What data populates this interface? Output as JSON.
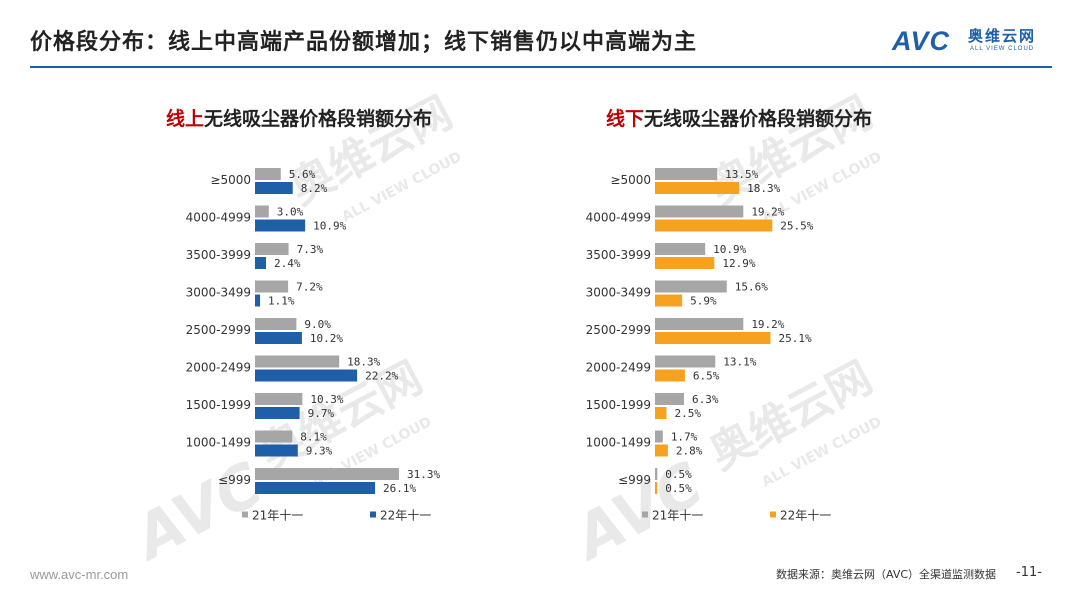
{
  "header": {
    "title": "价格段分布：线上中高端产品份额增加；线下销售仍以中高端为主"
  },
  "logo": {
    "mark": "AVC",
    "cn": "奥维云网",
    "en": "ALL VIEW CLOUD"
  },
  "watermark": {
    "cn": "奥维云网",
    "en": "ALL VIEW CLOUD"
  },
  "colors": {
    "accent": "#1f5fa8",
    "highlight": "#c00000",
    "gray_series": "#a6a6a6",
    "online_series": "#1f5fa8",
    "offline_series": "#f6a21e"
  },
  "chart_data": [
    {
      "type": "bar",
      "orientation": "horizontal",
      "title_highlight": "线上",
      "title_rest": "无线吸尘器价格段销额分布",
      "categories": [
        "≥5000",
        "4000-4999",
        "3500-3999",
        "3000-3499",
        "2500-2999",
        "2000-2499",
        "1500-1999",
        "1000-1499",
        "≤999"
      ],
      "series": [
        {
          "name": "21年十一",
          "color": "#a6a6a6",
          "values": [
            5.6,
            3.0,
            7.3,
            7.2,
            9.0,
            18.3,
            10.3,
            8.1,
            31.3
          ]
        },
        {
          "name": "22年十一",
          "color": "#1f5fa8",
          "values": [
            8.2,
            10.9,
            2.4,
            1.1,
            10.2,
            22.2,
            9.7,
            9.3,
            26.1
          ]
        }
      ],
      "value_suffix": "%",
      "legend_position": "bottom",
      "grid": false
    },
    {
      "type": "bar",
      "orientation": "horizontal",
      "title_highlight": "线下",
      "title_rest": "无线吸尘器价格段销额分布",
      "categories": [
        "≥5000",
        "4000-4999",
        "3500-3999",
        "3000-3499",
        "2500-2999",
        "2000-2499",
        "1500-1999",
        "1000-1499",
        "≤999"
      ],
      "series": [
        {
          "name": "21年十一",
          "color": "#a6a6a6",
          "values": [
            13.5,
            19.2,
            10.9,
            15.6,
            19.2,
            13.1,
            6.3,
            1.7,
            0.5
          ]
        },
        {
          "name": "22年十一",
          "color": "#f6a21e",
          "values": [
            18.3,
            25.5,
            12.9,
            5.9,
            25.1,
            6.5,
            2.5,
            2.8,
            0.5
          ]
        }
      ],
      "value_suffix": "%",
      "legend_position": "bottom",
      "grid": false
    }
  ],
  "footer": {
    "url": "www.avc-mr.com",
    "source": "数据来源：奥维云网（AVC）全渠道监测数据",
    "page": "-11-"
  }
}
